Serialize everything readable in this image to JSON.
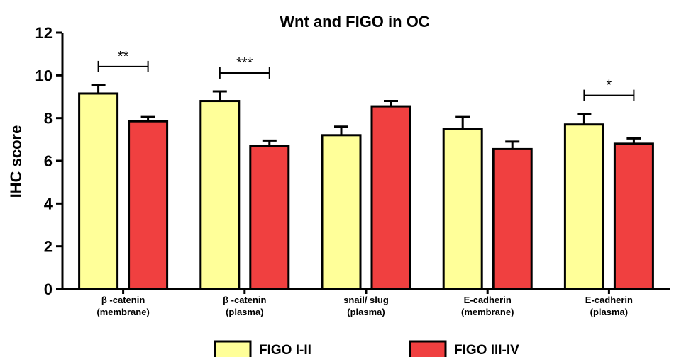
{
  "chart_data": {
    "type": "bar",
    "title": "Wnt and FIGO in OC",
    "ylabel": "IHC score",
    "xlabel": "",
    "ylim": [
      0,
      12
    ],
    "yticks": [
      0,
      2,
      4,
      6,
      8,
      10,
      12
    ],
    "categories": [
      [
        "β -catenin",
        "(membrane)"
      ],
      [
        "β -catenin",
        "(plasma)"
      ],
      [
        "snail/ slug",
        "(plasma)"
      ],
      [
        "E-cadherin",
        "(membrane)"
      ],
      [
        "E-cadherin",
        "(plasma)"
      ]
    ],
    "series": [
      {
        "name": "FIGO I-II",
        "color": "#ffff99",
        "values": [
          9.15,
          8.8,
          7.2,
          7.5,
          7.7
        ],
        "errors": [
          0.4,
          0.45,
          0.4,
          0.55,
          0.5
        ]
      },
      {
        "name": "FIGO III-IV",
        "color": "#f04040",
        "values": [
          7.85,
          6.7,
          8.55,
          6.55,
          6.8
        ],
        "errors": [
          0.2,
          0.25,
          0.25,
          0.35,
          0.25
        ]
      }
    ],
    "significance": [
      {
        "group": 0,
        "label": "**"
      },
      {
        "group": 1,
        "label": "***"
      },
      {
        "group": 4,
        "label": "*"
      }
    ],
    "legend_position": "bottom"
  }
}
